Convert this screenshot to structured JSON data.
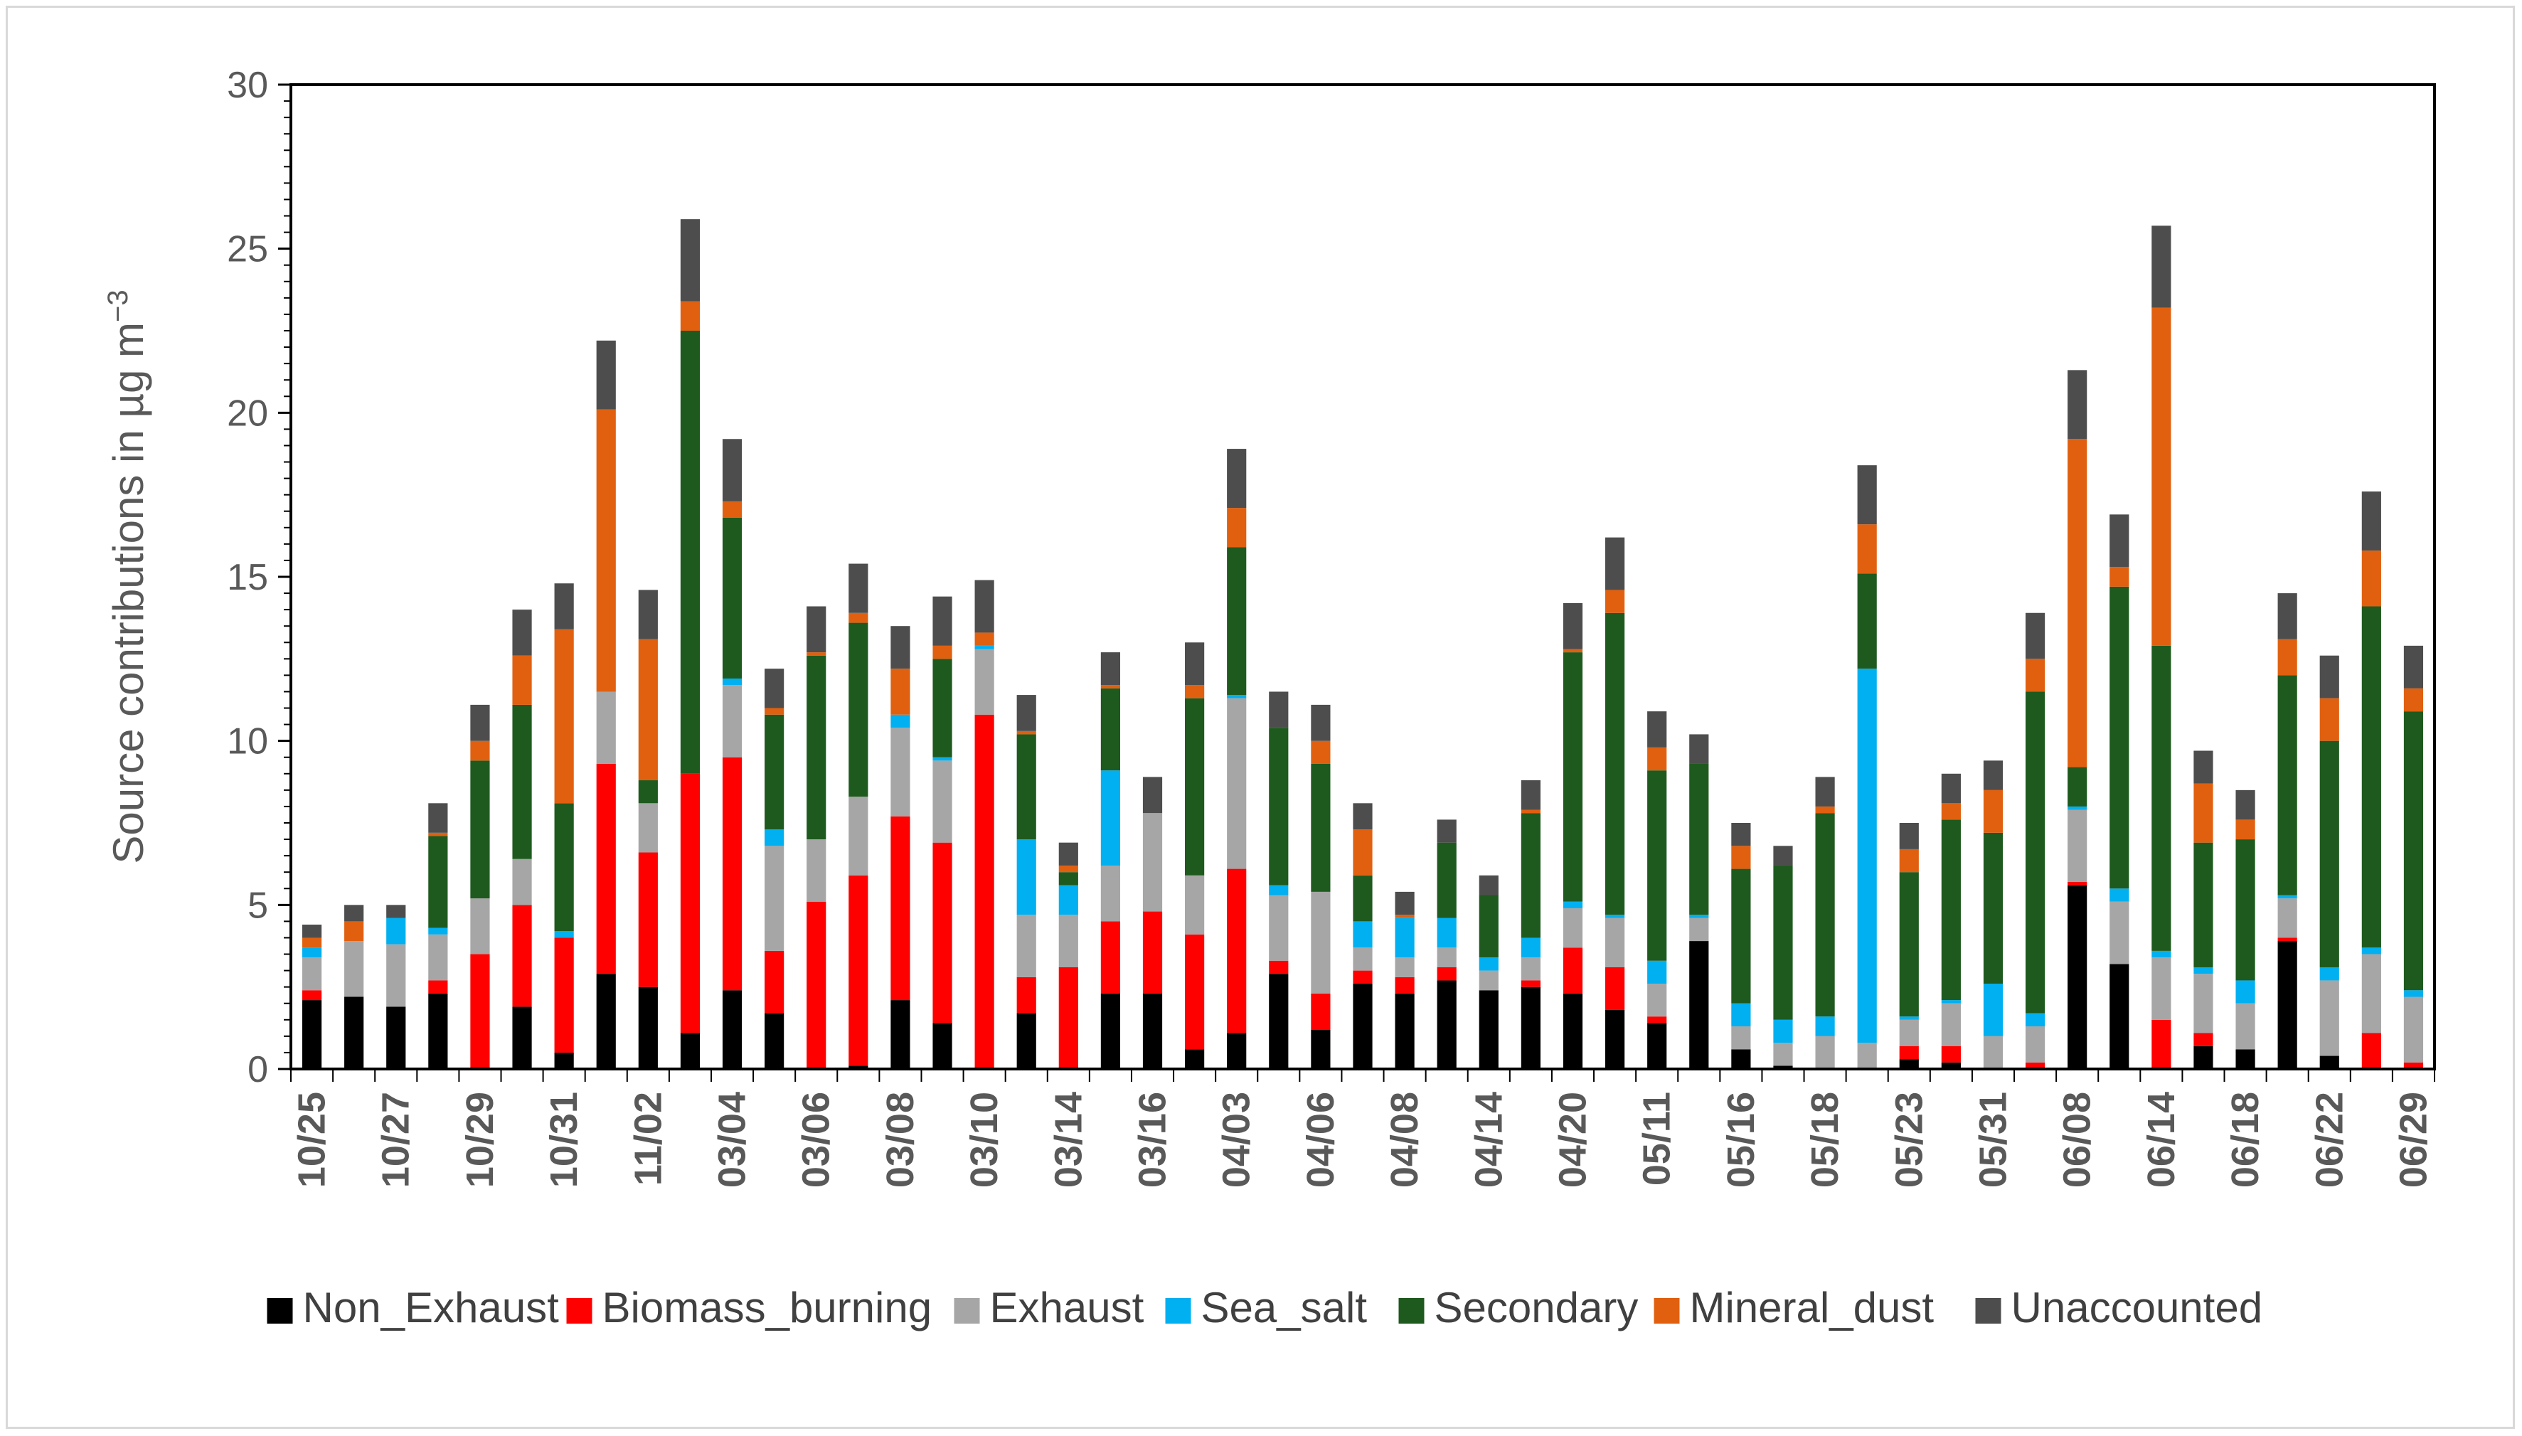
{
  "chart_data": {
    "type": "bar",
    "stacked": true,
    "title": "",
    "xlabel": "",
    "ylabel": "Source contributions in µg m",
    "ylabel_superscript": "−3",
    "ylim": [
      0,
      30
    ],
    "yticks": [
      0,
      5,
      10,
      15,
      20,
      25,
      30
    ],
    "tick_labels": [
      "10/25",
      "10/27",
      "10/29",
      "10/31",
      "11/02",
      "03/04",
      "03/06",
      "03/08",
      "03/10",
      "03/14",
      "03/16",
      "04/03",
      "04/06",
      "04/08",
      "04/14",
      "04/20",
      "05/11",
      "05/16",
      "05/18",
      "05/23",
      "05/31",
      "06/08",
      "06/14",
      "06/18",
      "06/22",
      "06/29"
    ],
    "legend_position": "bottom",
    "series": [
      {
        "name": "Non_Exhaust",
        "color": "#000000",
        "values": [
          2.1,
          2.2,
          1.9,
          2.3,
          0.0,
          1.9,
          0.5,
          2.9,
          2.5,
          1.1,
          2.4,
          1.7,
          0.0,
          0.1,
          2.1,
          1.4,
          0.0,
          1.7,
          0.0,
          2.3,
          2.3,
          0.6,
          1.1,
          2.9,
          1.2,
          2.6,
          2.3,
          2.7,
          2.4,
          2.5,
          2.3,
          1.8,
          1.4,
          3.9,
          0.6,
          0.1,
          0.0,
          0.0,
          0.3,
          0.2,
          0.0,
          0.0,
          5.6,
          3.2,
          0.0,
          0.7,
          0.6,
          3.9,
          0.4,
          0.0,
          0.0
        ]
      },
      {
        "name": "Biomass_burning",
        "color": "#ff0000",
        "values": [
          0.3,
          0.0,
          0.0,
          0.4,
          3.5,
          3.1,
          3.5,
          6.4,
          4.1,
          7.9,
          7.1,
          1.9,
          5.1,
          5.8,
          5.6,
          5.5,
          10.8,
          1.1,
          3.1,
          2.2,
          2.5,
          3.5,
          5.0,
          0.4,
          1.1,
          0.4,
          0.5,
          0.4,
          0.0,
          0.2,
          1.4,
          1.3,
          0.2,
          0.0,
          0.0,
          0.0,
          0.0,
          0.0,
          0.4,
          0.5,
          0.0,
          0.2,
          0.1,
          0.0,
          1.5,
          0.4,
          0.0,
          0.1,
          0.0,
          1.1,
          0.2
        ]
      },
      {
        "name": "Exhaust",
        "color": "#a6a6a6",
        "values": [
          1.0,
          1.7,
          1.9,
          1.4,
          1.7,
          1.4,
          0.0,
          2.2,
          1.5,
          0.0,
          2.2,
          3.2,
          1.9,
          2.4,
          2.7,
          2.5,
          2.0,
          1.9,
          1.6,
          1.7,
          3.0,
          1.8,
          5.2,
          2.0,
          3.1,
          0.7,
          0.6,
          0.6,
          0.6,
          0.7,
          1.2,
          1.5,
          1.0,
          0.7,
          0.7,
          0.7,
          1.0,
          0.8,
          0.8,
          1.3,
          1.0,
          1.1,
          2.2,
          1.9,
          1.9,
          1.8,
          1.4,
          1.2,
          2.3,
          2.4,
          2.0
        ]
      },
      {
        "name": "Sea_salt",
        "color": "#00b0f0",
        "values": [
          0.3,
          0.0,
          0.8,
          0.2,
          0.0,
          0.0,
          0.2,
          0.0,
          0.0,
          0.0,
          0.2,
          0.5,
          0.0,
          0.0,
          0.4,
          0.1,
          0.1,
          2.3,
          0.9,
          2.9,
          0.0,
          0.0,
          0.1,
          0.3,
          0.0,
          0.8,
          1.2,
          0.9,
          0.4,
          0.6,
          0.2,
          0.1,
          0.7,
          0.1,
          0.7,
          0.7,
          0.6,
          11.4,
          0.1,
          0.1,
          1.6,
          0.4,
          0.1,
          0.4,
          0.2,
          0.2,
          0.7,
          0.1,
          0.4,
          0.2,
          0.2
        ]
      },
      {
        "name": "Secondary",
        "color": "#1e5a1e",
        "values": [
          0.0,
          0.0,
          0.0,
          2.8,
          4.2,
          4.7,
          3.9,
          0.0,
          0.7,
          13.5,
          4.9,
          3.5,
          5.6,
          5.3,
          0.0,
          3.0,
          0.0,
          3.2,
          0.4,
          2.5,
          0.0,
          5.4,
          4.5,
          4.8,
          3.9,
          1.4,
          0.0,
          2.3,
          1.9,
          3.8,
          7.6,
          9.2,
          5.8,
          4.6,
          4.1,
          4.7,
          6.2,
          2.9,
          4.4,
          5.5,
          4.6,
          9.8,
          1.2,
          9.2,
          9.3,
          3.8,
          4.3,
          6.7,
          6.9,
          10.4,
          8.5
        ]
      },
      {
        "name": "Mineral_dust",
        "color": "#e06010",
        "values": [
          0.3,
          0.6,
          0.0,
          0.1,
          0.6,
          1.5,
          5.3,
          8.6,
          4.3,
          0.9,
          0.5,
          0.2,
          0.1,
          0.3,
          1.4,
          0.4,
          0.4,
          0.1,
          0.2,
          0.1,
          0.0,
          0.4,
          1.2,
          0.0,
          0.7,
          1.4,
          0.1,
          0.0,
          0.0,
          0.1,
          0.1,
          0.7,
          0.7,
          0.0,
          0.7,
          0.0,
          0.2,
          1.5,
          0.7,
          0.5,
          1.3,
          1.0,
          10.0,
          0.6,
          10.3,
          1.8,
          0.6,
          1.1,
          1.3,
          1.7,
          0.7
        ]
      },
      {
        "name": "Unaccounted",
        "color": "#4d4d4d",
        "values": [
          0.4,
          0.5,
          0.4,
          0.9,
          1.1,
          1.4,
          1.4,
          2.1,
          1.5,
          2.5,
          1.9,
          1.2,
          1.4,
          1.5,
          1.3,
          1.5,
          1.6,
          1.1,
          0.7,
          1.0,
          1.1,
          1.3,
          1.8,
          1.1,
          1.1,
          0.8,
          0.7,
          0.7,
          0.6,
          0.9,
          1.4,
          1.6,
          1.1,
          0.9,
          0.7,
          0.6,
          0.9,
          1.8,
          0.8,
          0.9,
          0.9,
          1.4,
          2.1,
          1.6,
          2.5,
          1.0,
          0.9,
          1.4,
          1.3,
          1.8,
          1.3
        ]
      }
    ]
  }
}
